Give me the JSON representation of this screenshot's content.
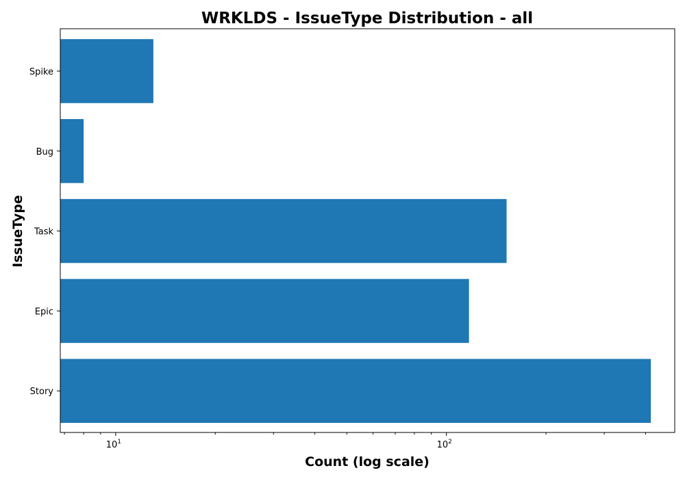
{
  "chart_data": {
    "type": "bar",
    "orientation": "horizontal",
    "title": "WRKLDS - IssueType Distribution - all",
    "xlabel": "Count (log scale)",
    "ylabel": "IssueType",
    "xscale": "log",
    "xlim": [
      6.8,
      490
    ],
    "categories": [
      "Story",
      "Epic",
      "Task",
      "Bug",
      "Spike"
    ],
    "values": [
      415,
      117,
      152,
      8,
      13
    ],
    "bar_color": "#1f77b4",
    "x_ticks": [
      {
        "value": 10,
        "base": "10",
        "exp": "1"
      },
      {
        "value": 100,
        "base": "10",
        "exp": "2"
      }
    ],
    "grid": false,
    "legend": "none"
  }
}
